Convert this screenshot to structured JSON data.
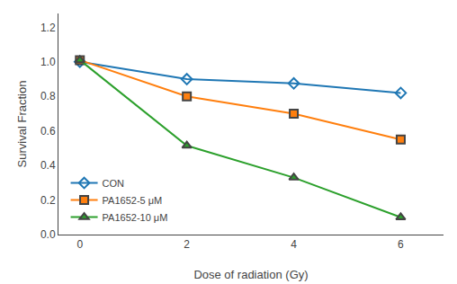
{
  "chart_data": {
    "type": "line",
    "x_label": "Dose of radiation (Gy)",
    "y_label": "Survival Fraction",
    "x": [
      0,
      2,
      4,
      6
    ],
    "series": [
      {
        "name": "CON",
        "values": [
          1.0,
          0.9,
          0.875,
          0.82
        ],
        "marker": "diamond-open"
      },
      {
        "name": "PA1652-5 μM",
        "values": [
          1.01,
          0.8,
          0.7,
          0.55
        ],
        "marker": "square"
      },
      {
        "name": "PA1652-10 μM",
        "values": [
          1.01,
          0.515,
          0.33,
          0.1
        ],
        "marker": "triangle-up"
      }
    ],
    "xlim": [
      -0.4,
      6.8
    ],
    "xticks": [
      0,
      2,
      4,
      6
    ],
    "ylim": [
      0,
      1.28
    ],
    "yticks": [
      {
        "value": 0,
        "label": "0.0"
      },
      0.2,
      0.4,
      0.6,
      0.8,
      {
        "value": 1,
        "label": "1.0"
      },
      1.2
    ],
    "grid": false,
    "legend": "lower left"
  }
}
